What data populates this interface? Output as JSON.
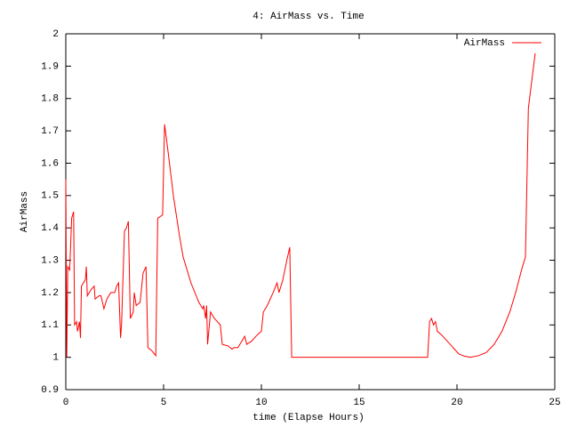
{
  "chart_data": {
    "type": "line",
    "title": "4: AirMass vs. Time",
    "x_label": "time (Elapse Hours)",
    "y_label": "AirMass",
    "x": [
      0,
      0.05,
      0.1,
      0.2,
      0.3,
      0.4,
      0.45,
      0.55,
      0.6,
      0.7,
      0.75,
      0.8,
      1.0,
      1.05,
      1.1,
      1.3,
      1.45,
      1.5,
      1.7,
      1.8,
      1.95,
      2.1,
      2.3,
      2.5,
      2.6,
      2.7,
      2.8,
      2.85,
      3.0,
      3.1,
      3.2,
      3.3,
      3.45,
      3.5,
      3.6,
      3.8,
      3.95,
      4.1,
      4.2,
      4.4,
      4.6,
      4.7,
      4.95,
      5.05,
      5.2,
      5.5,
      5.8,
      6.0,
      6.4,
      6.8,
      7.0,
      7.05,
      7.15,
      7.2,
      7.25,
      7.4,
      7.6,
      7.9,
      8.0,
      8.3,
      8.5,
      8.6,
      8.8,
      9.0,
      9.15,
      9.25,
      9.5,
      9.8,
      10.0,
      10.1,
      10.3,
      10.6,
      10.8,
      10.9,
      11.1,
      11.3,
      11.45,
      11.55,
      18.5,
      18.6,
      18.7,
      18.8,
      18.9,
      19.0,
      19.2,
      19.5,
      19.8,
      20.1,
      20.4,
      20.7,
      21.1,
      21.5,
      21.9,
      22.3,
      22.7,
      23.0,
      23.3,
      23.5,
      23.65,
      24.0
    ],
    "series": [
      {
        "name": "AirMass",
        "color": "#ff0000",
        "values": [
          1.55,
          1.0,
          1.28,
          1.27,
          1.43,
          1.45,
          1.1,
          1.11,
          1.08,
          1.11,
          1.06,
          1.22,
          1.24,
          1.28,
          1.19,
          1.21,
          1.22,
          1.18,
          1.19,
          1.19,
          1.15,
          1.18,
          1.2,
          1.2,
          1.22,
          1.23,
          1.06,
          1.1,
          1.39,
          1.4,
          1.42,
          1.12,
          1.14,
          1.2,
          1.16,
          1.17,
          1.26,
          1.28,
          1.03,
          1.02,
          1.005,
          1.43,
          1.44,
          1.72,
          1.65,
          1.5,
          1.38,
          1.31,
          1.23,
          1.17,
          1.15,
          1.16,
          1.12,
          1.16,
          1.04,
          1.14,
          1.12,
          1.1,
          1.04,
          1.035,
          1.025,
          1.03,
          1.03,
          1.05,
          1.065,
          1.04,
          1.05,
          1.07,
          1.08,
          1.14,
          1.16,
          1.2,
          1.23,
          1.2,
          1.24,
          1.3,
          1.34,
          1.0,
          1.0,
          1.11,
          1.12,
          1.1,
          1.11,
          1.08,
          1.07,
          1.05,
          1.03,
          1.01,
          1.003,
          1.0,
          1.005,
          1.015,
          1.04,
          1.08,
          1.14,
          1.2,
          1.27,
          1.31,
          1.77,
          1.94
        ]
      }
    ],
    "xlim": [
      0,
      25
    ],
    "xticks": [
      0,
      5,
      10,
      15,
      20,
      25
    ],
    "ylim": [
      0.9,
      2
    ],
    "yticks": [
      0.9,
      1,
      1.1,
      1.2,
      1.3,
      1.4,
      1.5,
      1.6,
      1.7,
      1.8,
      1.9,
      2
    ],
    "grid": false,
    "legend": "top-right"
  }
}
